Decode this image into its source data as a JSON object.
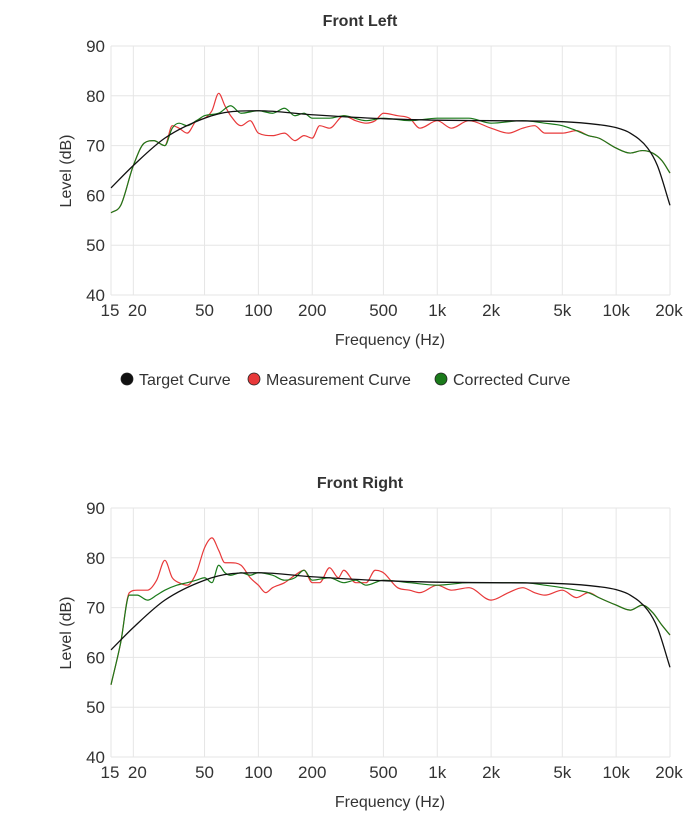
{
  "legend": [
    {
      "label": "Target Curve",
      "color": "#111111"
    },
    {
      "label": "Measurement Curve",
      "color": "#e8393a"
    },
    {
      "label": "Corrected Curve",
      "color": "#1a7a1a"
    }
  ],
  "chart_data": [
    {
      "type": "line",
      "title": "Front Left",
      "xlabel": "Frequency (Hz)",
      "ylabel": "Level (dB)",
      "xscale": "log",
      "xlim": [
        15,
        20000
      ],
      "ylim": [
        40,
        90
      ],
      "grid": true,
      "legend_position": "bottom",
      "xticks": [
        {
          "value": 15,
          "label": "15"
        },
        {
          "value": 20,
          "label": "20"
        },
        {
          "value": 50,
          "label": "50"
        },
        {
          "value": 100,
          "label": "100"
        },
        {
          "value": 200,
          "label": "200"
        },
        {
          "value": 500,
          "label": "500"
        },
        {
          "value": 1000,
          "label": "1k"
        },
        {
          "value": 2000,
          "label": "2k"
        },
        {
          "value": 5000,
          "label": "5k"
        },
        {
          "value": 10000,
          "label": "10k"
        },
        {
          "value": 20000,
          "label": "20k"
        }
      ],
      "yticks": [
        40,
        50,
        60,
        70,
        80,
        90
      ],
      "series": [
        {
          "name": "Target Curve",
          "color": "#111111",
          "x": [
            15,
            20,
            30,
            50,
            70,
            100,
            200,
            500,
            1000,
            2000,
            5000,
            8000,
            10000,
            12000,
            15000,
            17000,
            20000
          ],
          "y": [
            61.5,
            66,
            71.5,
            75.5,
            76.8,
            77,
            76.2,
            75.4,
            75.1,
            75,
            74.8,
            74.2,
            73.6,
            72.5,
            69.5,
            66,
            58
          ]
        },
        {
          "name": "Measurement Curve",
          "color": "#e8393a",
          "x": [
            15,
            17,
            20,
            23,
            26,
            30,
            33,
            36,
            40,
            45,
            50,
            55,
            60,
            65,
            70,
            80,
            90,
            100,
            120,
            140,
            160,
            180,
            200,
            220,
            250,
            300,
            350,
            400,
            450,
            500,
            600,
            700,
            800,
            1000,
            1200,
            1500,
            2000,
            2500,
            3000,
            3500,
            4000,
            5000,
            6000,
            7000,
            8000,
            10000,
            12000,
            14000,
            16000,
            18000,
            20000
          ],
          "y": [
            56.5,
            58,
            66,
            70.5,
            71,
            70,
            74,
            73.5,
            72.5,
            75,
            75.5,
            77,
            80.5,
            78,
            76,
            74,
            75,
            72.5,
            72,
            72.5,
            71,
            72,
            71.5,
            74,
            73.5,
            76,
            75,
            74.5,
            75,
            76.5,
            76,
            75.5,
            73.5,
            75,
            73.5,
            75,
            73.5,
            72.5,
            73.5,
            74,
            72.5,
            72.5,
            73,
            72,
            71.5,
            69.5,
            68.5,
            69,
            68.5,
            67,
            64.5
          ]
        },
        {
          "name": "Corrected Curve",
          "color": "#1a7a1a",
          "x": [
            15,
            17,
            20,
            23,
            26,
            30,
            33,
            36,
            40,
            45,
            50,
            60,
            70,
            80,
            100,
            120,
            140,
            160,
            180,
            200,
            250,
            300,
            400,
            500,
            700,
            1000,
            1500,
            2000,
            3000,
            4000,
            5000,
            6000,
            7000,
            8000,
            10000,
            12000,
            14000,
            16000,
            18000,
            20000
          ],
          "y": [
            56.5,
            58,
            66,
            70.5,
            71,
            70,
            73.5,
            74.5,
            74,
            75,
            76,
            76.5,
            78,
            76.5,
            77,
            76.5,
            77.5,
            76,
            76.5,
            75.5,
            75.5,
            76,
            75,
            75.5,
            75,
            75.5,
            75.5,
            74.5,
            75,
            74.5,
            74,
            73,
            72,
            71.5,
            69.5,
            68.5,
            69,
            68.5,
            67,
            64.5
          ]
        }
      ]
    },
    {
      "type": "line",
      "title": "Front Right",
      "xlabel": "Frequency (Hz)",
      "ylabel": "Level (dB)",
      "xscale": "log",
      "xlim": [
        15,
        20000
      ],
      "ylim": [
        40,
        90
      ],
      "grid": true,
      "xticks": [
        {
          "value": 15,
          "label": "15"
        },
        {
          "value": 20,
          "label": "20"
        },
        {
          "value": 50,
          "label": "50"
        },
        {
          "value": 100,
          "label": "100"
        },
        {
          "value": 200,
          "label": "200"
        },
        {
          "value": 500,
          "label": "500"
        },
        {
          "value": 1000,
          "label": "1k"
        },
        {
          "value": 2000,
          "label": "2k"
        },
        {
          "value": 5000,
          "label": "5k"
        },
        {
          "value": 10000,
          "label": "10k"
        },
        {
          "value": 20000,
          "label": "20k"
        }
      ],
      "yticks": [
        40,
        50,
        60,
        70,
        80,
        90
      ],
      "series": [
        {
          "name": "Target Curve",
          "color": "#111111",
          "x": [
            15,
            20,
            30,
            50,
            70,
            100,
            200,
            500,
            1000,
            2000,
            5000,
            8000,
            10000,
            12000,
            15000,
            17000,
            20000
          ],
          "y": [
            61.5,
            66,
            71.5,
            75.5,
            76.8,
            77,
            76.2,
            75.4,
            75.1,
            75,
            74.8,
            74.2,
            73.6,
            72.5,
            69.5,
            66,
            58
          ]
        },
        {
          "name": "Measurement Curve",
          "color": "#e8393a",
          "x": [
            15,
            17,
            19,
            21,
            24,
            27,
            30,
            33,
            36,
            40,
            45,
            50,
            55,
            60,
            65,
            70,
            80,
            90,
            100,
            110,
            120,
            140,
            160,
            180,
            200,
            220,
            250,
            280,
            300,
            350,
            400,
            450,
            500,
            600,
            700,
            800,
            1000,
            1200,
            1500,
            2000,
            2500,
            3000,
            3500,
            4000,
            5000,
            6000,
            7000,
            8000,
            10000,
            12000,
            14000,
            16000,
            18000,
            20000
          ],
          "y": [
            54.5,
            63,
            73,
            73.5,
            73.5,
            75.5,
            79.5,
            76,
            75,
            74.5,
            77,
            82,
            84,
            81.5,
            79,
            79,
            78.5,
            76,
            74.5,
            73,
            74,
            75,
            76.5,
            77.5,
            75,
            75,
            78,
            76,
            77.5,
            75,
            75,
            77.5,
            77,
            74,
            73.5,
            73,
            74.5,
            73.5,
            74,
            71.5,
            73,
            74,
            73,
            72.5,
            73.5,
            72,
            73,
            72,
            70.5,
            69.5,
            70.5,
            69,
            66.5,
            64.5
          ]
        },
        {
          "name": "Corrected Curve",
          "color": "#1a7a1a",
          "x": [
            15,
            17,
            19,
            21,
            24,
            27,
            30,
            35,
            40,
            45,
            50,
            55,
            60,
            65,
            70,
            80,
            90,
            100,
            120,
            140,
            160,
            180,
            200,
            250,
            300,
            350,
            400,
            500,
            700,
            1000,
            1500,
            2000,
            3000,
            4000,
            5000,
            6000,
            7000,
            8000,
            10000,
            12000,
            14000,
            16000,
            18000,
            20000
          ],
          "y": [
            54.5,
            63,
            72.5,
            72.5,
            71.5,
            72.5,
            73.5,
            74.5,
            75,
            75.5,
            76,
            75,
            78.5,
            77,
            76.5,
            77,
            76.5,
            77,
            76.5,
            75.5,
            76,
            77.5,
            75.5,
            76,
            75,
            75.5,
            74.5,
            75.5,
            75,
            74.5,
            75,
            75,
            75,
            74.5,
            74,
            73.5,
            73,
            72,
            70.5,
            69.5,
            70.5,
            69,
            66.5,
            64.5
          ]
        }
      ]
    }
  ]
}
